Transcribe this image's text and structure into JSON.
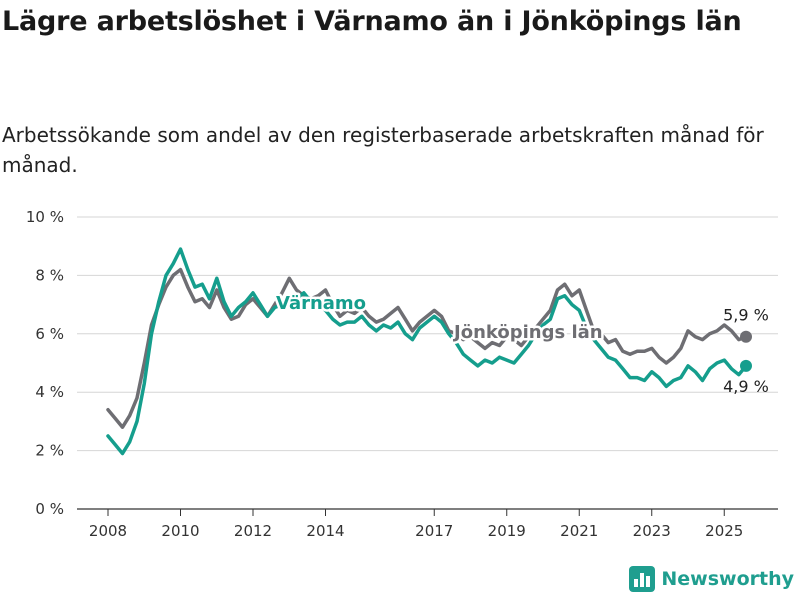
{
  "title": "Lägre arbetslöshet i Värnamo än i Jönköpings län",
  "subtitle": "Arbetssökande som andel av den registerbaserade arbetskraften månad för månad.",
  "brand": {
    "name": "Newsworthy"
  },
  "chart_data": {
    "type": "line",
    "ylim": [
      0,
      10
    ],
    "xlim": [
      2007.8,
      2026.0
    ],
    "y_ticks": [
      0,
      2,
      4,
      6,
      8,
      10
    ],
    "y_tick_labels": [
      "0 %",
      "2 %",
      "4 %",
      "6 %",
      "8 %",
      "10 %"
    ],
    "x_ticks": [
      2008,
      2010,
      2012,
      2014,
      2017,
      2019,
      2021,
      2023,
      2025
    ],
    "x_tick_labels": [
      "2008",
      "2010",
      "2012",
      "2014",
      "2017",
      "2019",
      "2021",
      "2023",
      "2025"
    ],
    "grid": true,
    "series": [
      {
        "name": "Jönköpings län",
        "color": "#6e6e73",
        "end_label": "5,9 %",
        "points": [
          [
            2008.0,
            3.4
          ],
          [
            2008.2,
            3.1
          ],
          [
            2008.4,
            2.8
          ],
          [
            2008.6,
            3.2
          ],
          [
            2008.8,
            3.8
          ],
          [
            2009.0,
            5.0
          ],
          [
            2009.2,
            6.3
          ],
          [
            2009.4,
            7.0
          ],
          [
            2009.6,
            7.6
          ],
          [
            2009.8,
            8.0
          ],
          [
            2010.0,
            8.2
          ],
          [
            2010.2,
            7.6
          ],
          [
            2010.4,
            7.1
          ],
          [
            2010.6,
            7.2
          ],
          [
            2010.8,
            6.9
          ],
          [
            2011.0,
            7.5
          ],
          [
            2011.2,
            6.9
          ],
          [
            2011.4,
            6.5
          ],
          [
            2011.6,
            6.6
          ],
          [
            2011.8,
            7.0
          ],
          [
            2012.0,
            7.2
          ],
          [
            2012.2,
            6.9
          ],
          [
            2012.4,
            6.6
          ],
          [
            2012.6,
            7.0
          ],
          [
            2012.8,
            7.4
          ],
          [
            2013.0,
            7.9
          ],
          [
            2013.2,
            7.5
          ],
          [
            2013.4,
            7.3
          ],
          [
            2013.6,
            7.2
          ],
          [
            2013.8,
            7.3
          ],
          [
            2014.0,
            7.5
          ],
          [
            2014.2,
            7.0
          ],
          [
            2014.4,
            6.6
          ],
          [
            2014.6,
            6.8
          ],
          [
            2014.8,
            6.7
          ],
          [
            2015.0,
            6.9
          ],
          [
            2015.2,
            6.6
          ],
          [
            2015.4,
            6.4
          ],
          [
            2015.6,
            6.5
          ],
          [
            2015.8,
            6.7
          ],
          [
            2016.0,
            6.9
          ],
          [
            2016.2,
            6.5
          ],
          [
            2016.4,
            6.1
          ],
          [
            2016.6,
            6.4
          ],
          [
            2016.8,
            6.6
          ],
          [
            2017.0,
            6.8
          ],
          [
            2017.2,
            6.6
          ],
          [
            2017.4,
            6.1
          ],
          [
            2017.6,
            6.0
          ],
          [
            2017.8,
            5.8
          ],
          [
            2018.0,
            5.9
          ],
          [
            2018.2,
            5.7
          ],
          [
            2018.4,
            5.5
          ],
          [
            2018.6,
            5.7
          ],
          [
            2018.8,
            5.6
          ],
          [
            2019.0,
            5.9
          ],
          [
            2019.2,
            5.8
          ],
          [
            2019.4,
            5.6
          ],
          [
            2019.6,
            5.9
          ],
          [
            2019.8,
            6.2
          ],
          [
            2020.0,
            6.5
          ],
          [
            2020.2,
            6.8
          ],
          [
            2020.4,
            7.5
          ],
          [
            2020.6,
            7.7
          ],
          [
            2020.8,
            7.3
          ],
          [
            2021.0,
            7.5
          ],
          [
            2021.2,
            6.8
          ],
          [
            2021.4,
            6.1
          ],
          [
            2021.6,
            6.0
          ],
          [
            2021.8,
            5.7
          ],
          [
            2022.0,
            5.8
          ],
          [
            2022.2,
            5.4
          ],
          [
            2022.4,
            5.3
          ],
          [
            2022.6,
            5.4
          ],
          [
            2022.8,
            5.4
          ],
          [
            2023.0,
            5.5
          ],
          [
            2023.2,
            5.2
          ],
          [
            2023.4,
            5.0
          ],
          [
            2023.6,
            5.2
          ],
          [
            2023.8,
            5.5
          ],
          [
            2024.0,
            6.1
          ],
          [
            2024.2,
            5.9
          ],
          [
            2024.4,
            5.8
          ],
          [
            2024.6,
            6.0
          ],
          [
            2024.8,
            6.1
          ],
          [
            2025.0,
            6.3
          ],
          [
            2025.2,
            6.1
          ],
          [
            2025.4,
            5.8
          ],
          [
            2025.6,
            5.9
          ]
        ]
      },
      {
        "name": "Värnamo",
        "color": "#159e8d",
        "end_label": "4,9 %",
        "points": [
          [
            2008.0,
            2.5
          ],
          [
            2008.2,
            2.2
          ],
          [
            2008.4,
            1.9
          ],
          [
            2008.6,
            2.3
          ],
          [
            2008.8,
            3.0
          ],
          [
            2009.0,
            4.3
          ],
          [
            2009.2,
            6.0
          ],
          [
            2009.4,
            7.1
          ],
          [
            2009.6,
            8.0
          ],
          [
            2009.8,
            8.4
          ],
          [
            2010.0,
            8.9
          ],
          [
            2010.2,
            8.2
          ],
          [
            2010.4,
            7.6
          ],
          [
            2010.6,
            7.7
          ],
          [
            2010.8,
            7.2
          ],
          [
            2011.0,
            7.9
          ],
          [
            2011.2,
            7.1
          ],
          [
            2011.4,
            6.6
          ],
          [
            2011.6,
            6.9
          ],
          [
            2011.8,
            7.1
          ],
          [
            2012.0,
            7.4
          ],
          [
            2012.2,
            7.0
          ],
          [
            2012.4,
            6.6
          ],
          [
            2012.6,
            6.9
          ],
          [
            2012.8,
            7.0
          ],
          [
            2013.0,
            7.1
          ],
          [
            2013.2,
            7.2
          ],
          [
            2013.4,
            7.4
          ],
          [
            2013.6,
            7.1
          ],
          [
            2013.8,
            7.0
          ],
          [
            2014.0,
            6.8
          ],
          [
            2014.2,
            6.5
          ],
          [
            2014.4,
            6.3
          ],
          [
            2014.6,
            6.4
          ],
          [
            2014.8,
            6.4
          ],
          [
            2015.0,
            6.6
          ],
          [
            2015.2,
            6.3
          ],
          [
            2015.4,
            6.1
          ],
          [
            2015.6,
            6.3
          ],
          [
            2015.8,
            6.2
          ],
          [
            2016.0,
            6.4
          ],
          [
            2016.2,
            6.0
          ],
          [
            2016.4,
            5.8
          ],
          [
            2016.6,
            6.2
          ],
          [
            2016.8,
            6.4
          ],
          [
            2017.0,
            6.6
          ],
          [
            2017.2,
            6.4
          ],
          [
            2017.4,
            6.0
          ],
          [
            2017.6,
            5.7
          ],
          [
            2017.8,
            5.3
          ],
          [
            2018.0,
            5.1
          ],
          [
            2018.2,
            4.9
          ],
          [
            2018.4,
            5.1
          ],
          [
            2018.6,
            5.0
          ],
          [
            2018.8,
            5.2
          ],
          [
            2019.0,
            5.1
          ],
          [
            2019.2,
            5.0
          ],
          [
            2019.4,
            5.3
          ],
          [
            2019.6,
            5.6
          ],
          [
            2019.8,
            6.0
          ],
          [
            2020.0,
            6.3
          ],
          [
            2020.2,
            6.5
          ],
          [
            2020.4,
            7.2
          ],
          [
            2020.6,
            7.3
          ],
          [
            2020.8,
            7.0
          ],
          [
            2021.0,
            6.8
          ],
          [
            2021.2,
            6.2
          ],
          [
            2021.4,
            5.8
          ],
          [
            2021.6,
            5.5
          ],
          [
            2021.8,
            5.2
          ],
          [
            2022.0,
            5.1
          ],
          [
            2022.2,
            4.8
          ],
          [
            2022.4,
            4.5
          ],
          [
            2022.6,
            4.5
          ],
          [
            2022.8,
            4.4
          ],
          [
            2023.0,
            4.7
          ],
          [
            2023.2,
            4.5
          ],
          [
            2023.4,
            4.2
          ],
          [
            2023.6,
            4.4
          ],
          [
            2023.8,
            4.5
          ],
          [
            2024.0,
            4.9
          ],
          [
            2024.2,
            4.7
          ],
          [
            2024.4,
            4.4
          ],
          [
            2024.6,
            4.8
          ],
          [
            2024.8,
            5.0
          ],
          [
            2025.0,
            5.1
          ],
          [
            2025.2,
            4.8
          ],
          [
            2025.4,
            4.6
          ],
          [
            2025.6,
            4.9
          ]
        ]
      }
    ]
  }
}
